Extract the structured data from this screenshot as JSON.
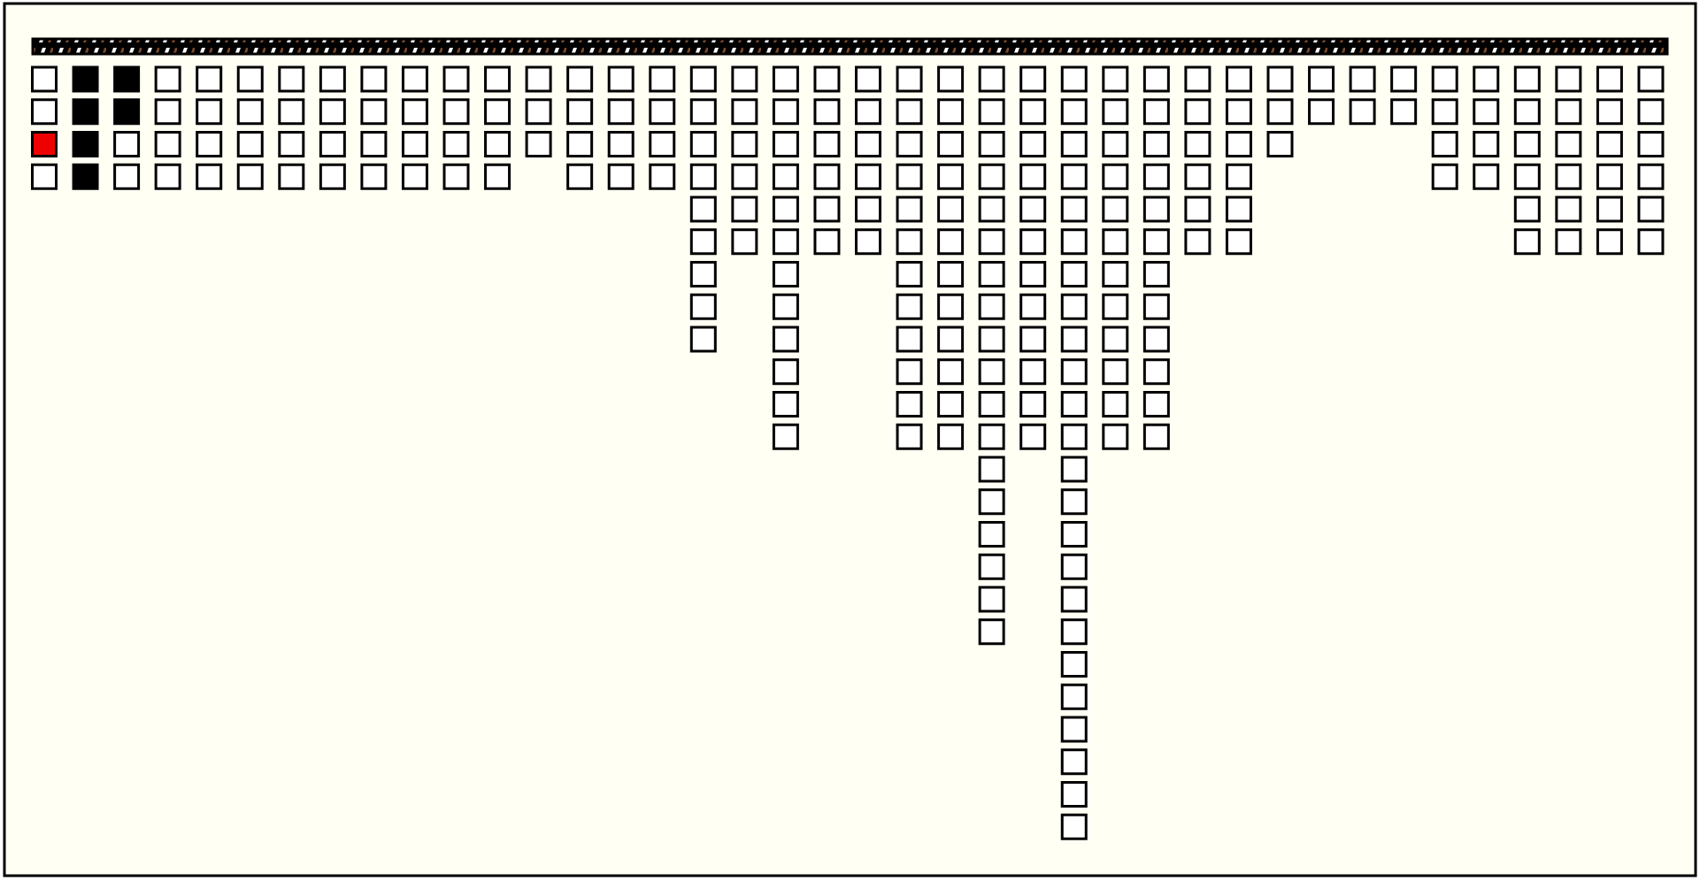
{
  "columns": [
    4,
    4,
    4,
    4,
    4,
    4,
    4,
    4,
    4,
    4,
    4,
    4,
    3,
    4,
    4,
    4,
    9,
    6,
    12,
    6,
    6,
    12,
    12,
    18,
    12,
    24,
    12,
    12,
    6,
    6,
    3,
    2,
    2,
    2,
    4,
    4,
    6,
    6,
    6,
    6
  ],
  "colors": {
    "empty": "#ffffff",
    "used": "#000000",
    "active": "#ee0000"
  },
  "cells": [
    {
      "column": 0,
      "row": 2,
      "state": "active"
    },
    {
      "column": 1,
      "row": 0,
      "state": "used"
    },
    {
      "column": 1,
      "row": 1,
      "state": "used"
    },
    {
      "column": 1,
      "row": 2,
      "state": "used"
    },
    {
      "column": 1,
      "row": 3,
      "state": "used"
    },
    {
      "column": 2,
      "row": 0,
      "state": "used"
    },
    {
      "column": 2,
      "row": 1,
      "state": "used"
    }
  ]
}
